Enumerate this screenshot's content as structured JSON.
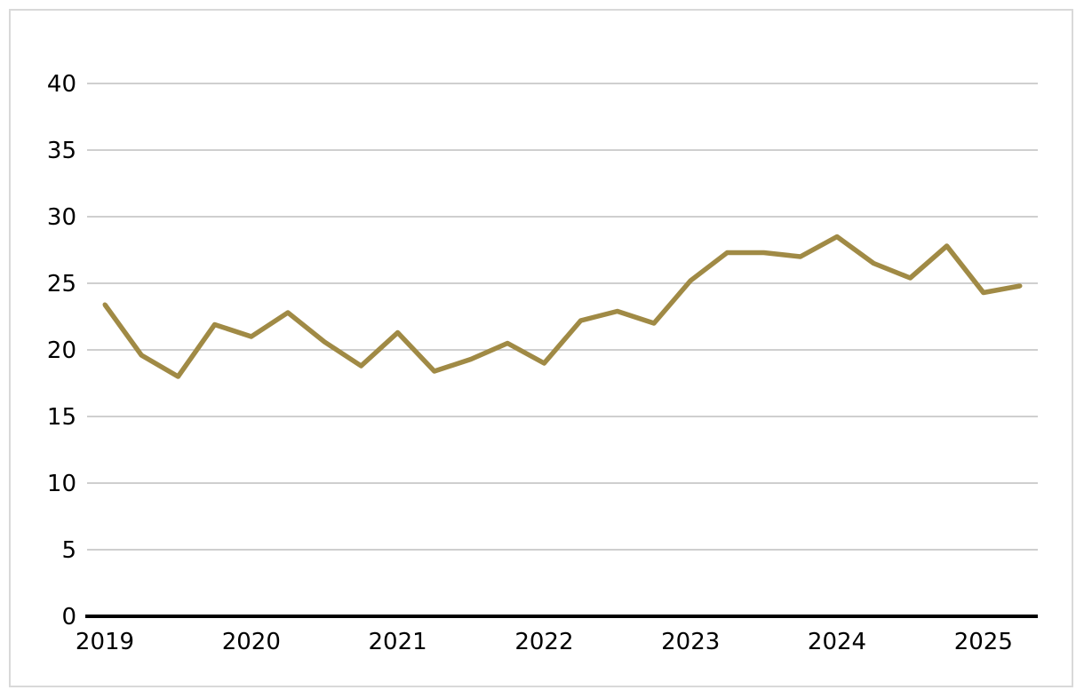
{
  "chart_data": {
    "type": "line",
    "title": "",
    "xlabel": "",
    "ylabel": "",
    "x_tick_labels": [
      "2019",
      "2020",
      "2021",
      "2022",
      "2023",
      "2024",
      "2025"
    ],
    "y_ticks": [
      0,
      5,
      10,
      15,
      20,
      25,
      30,
      35,
      40
    ],
    "ylim": [
      0,
      40
    ],
    "grid": true,
    "legend": "none",
    "x": [
      "2019-Q1",
      "2019-Q2",
      "2019-Q3",
      "2019-Q4",
      "2020-Q1",
      "2020-Q2",
      "2020-Q3",
      "2020-Q4",
      "2021-Q1",
      "2021-Q2",
      "2021-Q3",
      "2021-Q4",
      "2022-Q1",
      "2022-Q2",
      "2022-Q3",
      "2022-Q4",
      "2023-Q1",
      "2023-Q2",
      "2023-Q3",
      "2023-Q4",
      "2024-Q1",
      "2024-Q2",
      "2024-Q3",
      "2024-Q4",
      "2025-Q1",
      "2025-Q2"
    ],
    "series": [
      {
        "color": "#a08a45",
        "values": [
          23.4,
          19.6,
          18.0,
          21.9,
          21.0,
          22.8,
          20.6,
          18.8,
          21.3,
          18.4,
          19.3,
          20.5,
          19.0,
          22.2,
          22.9,
          22.0,
          25.2,
          27.3,
          27.3,
          27.0,
          28.5,
          26.5,
          25.4,
          27.8,
          24.3,
          24.8
        ]
      }
    ]
  },
  "colors": {
    "line": "#a08a45",
    "grid": "#bfbfbf",
    "axis": "#000000",
    "frame": "#d9d9d9"
  }
}
